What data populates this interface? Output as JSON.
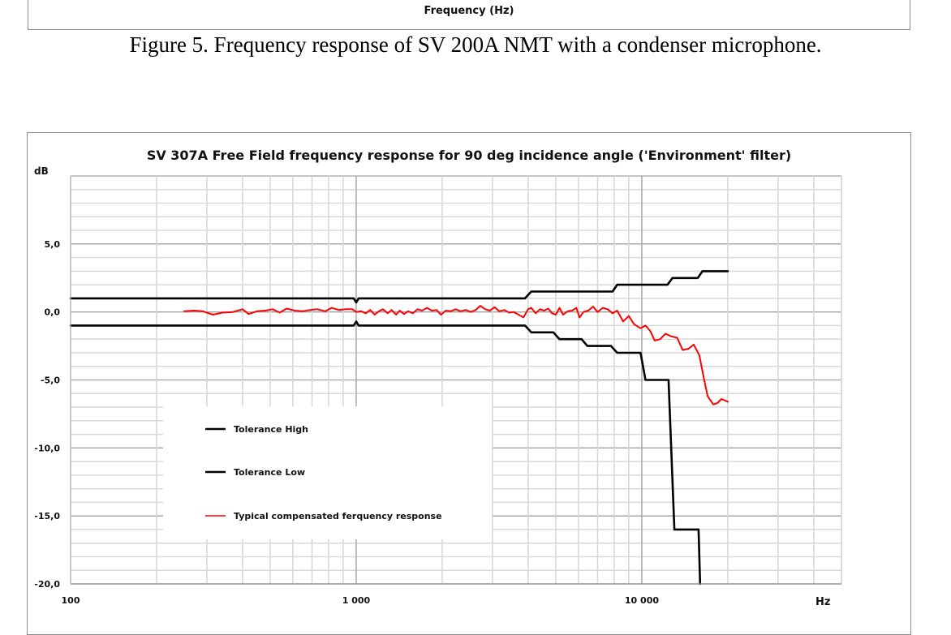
{
  "previous_figure": {
    "xlabel": "Frequency (Hz)",
    "caption": "Figure 5. Frequency response of SV 200A NMT with a condenser microphone."
  },
  "chart_data": {
    "type": "line",
    "title": "SV 307A Free Field frequency response for 90 deg incidence angle ('Environment' filter)",
    "xlabel": "Hz",
    "ylabel": "dB",
    "xscale": "log",
    "xlim": [
      100,
      50000
    ],
    "ylim": [
      -20,
      10
    ],
    "grid": true,
    "x_ticks": [
      {
        "value": 100,
        "label": "100"
      },
      {
        "value": 1000,
        "label": "1 000"
      },
      {
        "value": 10000,
        "label": "10 000"
      }
    ],
    "y_ticks": [
      {
        "value": 5,
        "label": "5,0"
      },
      {
        "value": 0,
        "label": "0,0"
      },
      {
        "value": -5,
        "label": "-5,0"
      },
      {
        "value": -10,
        "label": "-10,0"
      },
      {
        "value": -15,
        "label": "-15,0"
      },
      {
        "value": -20,
        "label": "-20,0"
      }
    ],
    "legend_position": "lower-left",
    "series": [
      {
        "name": "Tolerance High",
        "color": "#000000",
        "points": [
          [
            100,
            1.0
          ],
          [
            980,
            1.0
          ],
          [
            1000,
            0.7
          ],
          [
            1020,
            1.0
          ],
          [
            3900,
            1.0
          ],
          [
            4100,
            1.5
          ],
          [
            7900,
            1.5
          ],
          [
            8200,
            2.0
          ],
          [
            12300,
            2.0
          ],
          [
            12800,
            2.5
          ],
          [
            15700,
            2.5
          ],
          [
            16300,
            3.0
          ],
          [
            20000,
            3.0
          ]
        ]
      },
      {
        "name": "Tolerance Low",
        "color": "#000000",
        "points": [
          [
            100,
            -1.0
          ],
          [
            980,
            -1.0
          ],
          [
            1000,
            -0.7
          ],
          [
            1020,
            -1.0
          ],
          [
            3900,
            -1.0
          ],
          [
            4100,
            -1.5
          ],
          [
            4900,
            -1.5
          ],
          [
            5150,
            -2.0
          ],
          [
            6150,
            -2.0
          ],
          [
            6450,
            -2.5
          ],
          [
            7800,
            -2.5
          ],
          [
            8200,
            -3.0
          ],
          [
            9900,
            -3.0
          ],
          [
            10300,
            -5.0
          ],
          [
            12400,
            -5.0
          ],
          [
            13000,
            -16.0
          ],
          [
            15800,
            -16.0
          ],
          [
            16000,
            -20.0
          ]
        ]
      },
      {
        "name": "Typical compensated ferquency response",
        "color": "#ff0000",
        "points": [
          [
            250,
            0.05
          ],
          [
            270,
            0.1
          ],
          [
            290,
            0.05
          ],
          [
            315,
            -0.2
          ],
          [
            340,
            -0.05
          ],
          [
            370,
            0.0
          ],
          [
            400,
            0.2
          ],
          [
            420,
            -0.15
          ],
          [
            450,
            0.05
          ],
          [
            480,
            0.1
          ],
          [
            510,
            0.2
          ],
          [
            540,
            -0.05
          ],
          [
            570,
            0.25
          ],
          [
            610,
            0.1
          ],
          [
            650,
            0.05
          ],
          [
            690,
            0.15
          ],
          [
            730,
            0.2
          ],
          [
            780,
            0.05
          ],
          [
            820,
            0.3
          ],
          [
            870,
            0.15
          ],
          [
            920,
            0.2
          ],
          [
            970,
            0.2
          ],
          [
            1000,
            0.0
          ],
          [
            1040,
            0.05
          ],
          [
            1080,
            -0.1
          ],
          [
            1120,
            0.15
          ],
          [
            1160,
            -0.2
          ],
          [
            1200,
            0.05
          ],
          [
            1240,
            0.2
          ],
          [
            1290,
            -0.1
          ],
          [
            1330,
            0.15
          ],
          [
            1380,
            -0.2
          ],
          [
            1420,
            0.1
          ],
          [
            1470,
            -0.15
          ],
          [
            1520,
            0.05
          ],
          [
            1580,
            -0.1
          ],
          [
            1640,
            0.2
          ],
          [
            1700,
            0.1
          ],
          [
            1770,
            0.3
          ],
          [
            1840,
            0.1
          ],
          [
            1910,
            0.15
          ],
          [
            1980,
            -0.2
          ],
          [
            2060,
            0.1
          ],
          [
            2140,
            0.05
          ],
          [
            2230,
            0.2
          ],
          [
            2320,
            0.05
          ],
          [
            2420,
            0.15
          ],
          [
            2520,
            0.0
          ],
          [
            2620,
            0.15
          ],
          [
            2720,
            0.45
          ],
          [
            2830,
            0.2
          ],
          [
            2940,
            0.1
          ],
          [
            3050,
            0.35
          ],
          [
            3170,
            0.05
          ],
          [
            3300,
            0.15
          ],
          [
            3430,
            -0.05
          ],
          [
            3560,
            0.0
          ],
          [
            3700,
            -0.2
          ],
          [
            3850,
            -0.4
          ],
          [
            4000,
            0.2
          ],
          [
            4100,
            0.3
          ],
          [
            4250,
            -0.1
          ],
          [
            4400,
            0.2
          ],
          [
            4550,
            0.1
          ],
          [
            4700,
            0.25
          ],
          [
            4850,
            -0.1
          ],
          [
            5000,
            -0.2
          ],
          [
            5150,
            0.3
          ],
          [
            5300,
            -0.2
          ],
          [
            5500,
            0.05
          ],
          [
            5700,
            0.1
          ],
          [
            5900,
            0.3
          ],
          [
            6050,
            -0.4
          ],
          [
            6250,
            0.0
          ],
          [
            6500,
            0.1
          ],
          [
            6750,
            0.4
          ],
          [
            7000,
            0.0
          ],
          [
            7300,
            0.3
          ],
          [
            7600,
            0.2
          ],
          [
            7900,
            -0.1
          ],
          [
            8200,
            0.1
          ],
          [
            8600,
            -0.7
          ],
          [
            9000,
            -0.3
          ],
          [
            9400,
            -0.9
          ],
          [
            9900,
            -1.2
          ],
          [
            10300,
            -1.0
          ],
          [
            10700,
            -1.4
          ],
          [
            11100,
            -2.1
          ],
          [
            11600,
            -2.0
          ],
          [
            12100,
            -1.6
          ],
          [
            12700,
            -1.8
          ],
          [
            13300,
            -1.9
          ],
          [
            13900,
            -2.8
          ],
          [
            14600,
            -2.7
          ],
          [
            15200,
            -2.4
          ],
          [
            15900,
            -3.2
          ],
          [
            16500,
            -4.9
          ],
          [
            17000,
            -6.2
          ],
          [
            17800,
            -6.8
          ],
          [
            18400,
            -6.7
          ],
          [
            19000,
            -6.4
          ],
          [
            20000,
            -6.6
          ]
        ]
      }
    ]
  }
}
